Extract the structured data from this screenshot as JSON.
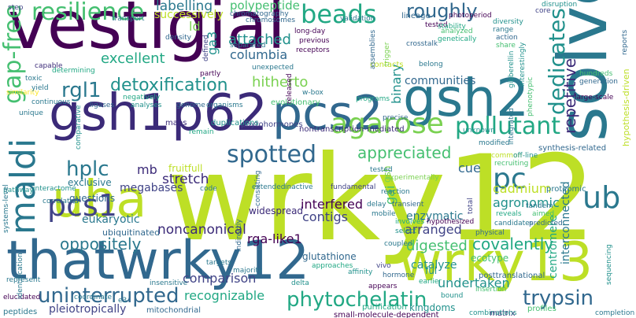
{
  "word_cloud": {
    "background": "#ffffff",
    "palette": {
      "dark_purple": "#440154",
      "indigo": "#3b2a78",
      "blue_violet": "#414487",
      "slate_blue": "#31688e",
      "teal_blue": "#2a788e",
      "teal": "#21918c",
      "green_teal": "#22a884",
      "green": "#44bf70",
      "light_green": "#7ad151",
      "yellow_green": "#bddf26",
      "yellow": "#fde725"
    },
    "words": [
      {
        "text": "vestigial",
        "color": "#440154"
      },
      {
        "text": "wrky12",
        "color": "#bddf26"
      },
      {
        "text": "solve",
        "color": "#2a788e"
      },
      {
        "text": "thatwrky12",
        "color": "#31688e"
      },
      {
        "text": "wrky13",
        "color": "#bddf26"
      },
      {
        "text": "gsh1",
        "color": "#3b2a78"
      },
      {
        "text": "p62",
        "color": "#3b2a78"
      },
      {
        "text": "gsh2",
        "color": "#2a788e"
      },
      {
        "text": "pcs2",
        "color": "#31688e"
      },
      {
        "text": "uba",
        "color": "#bddf26"
      },
      {
        "text": "maldi",
        "color": "#2a788e"
      },
      {
        "text": "gap-free",
        "color": "#44bf70"
      },
      {
        "text": "resilience",
        "color": "#44bf70"
      },
      {
        "text": "beads",
        "color": "#22a884"
      },
      {
        "text": "roughly",
        "color": "#31688e"
      },
      {
        "text": "agarose",
        "color": "#7ad151"
      },
      {
        "text": "pollutant",
        "color": "#22a884"
      },
      {
        "text": "spotted",
        "color": "#31688e"
      },
      {
        "text": "pcs1",
        "color": "#414487"
      },
      {
        "text": "hplc",
        "color": "#2a788e"
      },
      {
        "text": "rgl1",
        "color": "#2a788e"
      },
      {
        "text": "detoxification",
        "color": "#21918c"
      },
      {
        "text": "uninterrupted",
        "color": "#31688e"
      },
      {
        "text": "phytochelatin",
        "color": "#22a884"
      },
      {
        "text": "trypsin",
        "color": "#31688e"
      },
      {
        "text": "ub",
        "color": "#2a788e"
      },
      {
        "text": "pc",
        "color": "#2a788e"
      },
      {
        "text": "dedicates",
        "color": "#21918c"
      },
      {
        "text": "repetitive",
        "color": "#3b2a78"
      },
      {
        "text": "labelling",
        "color": "#2a788e"
      },
      {
        "text": "polypeptide",
        "color": "#44bf70"
      },
      {
        "text": "chromatography",
        "color": "#31688e"
      },
      {
        "text": "successively",
        "color": "#bddf26"
      },
      {
        "text": "attached",
        "color": "#21918c"
      },
      {
        "text": "columbia",
        "color": "#31688e"
      },
      {
        "text": "excellent",
        "color": "#22a884"
      },
      {
        "text": "hitherto",
        "color": "#7ad151"
      },
      {
        "text": "appreciated",
        "color": "#44bf70"
      },
      {
        "text": "stretch",
        "color": "#3b2a78"
      },
      {
        "text": "binary",
        "color": "#21918c"
      },
      {
        "text": "communities",
        "color": "#31688e"
      },
      {
        "text": "agronomic",
        "color": "#21918c"
      },
      {
        "text": "cadmium",
        "color": "#bddf26"
      },
      {
        "text": "interfered",
        "color": "#440154"
      },
      {
        "text": "enzymatic",
        "color": "#2a788e"
      },
      {
        "text": "contigs",
        "color": "#414487"
      },
      {
        "text": "arranged",
        "color": "#414487"
      },
      {
        "text": "covalently",
        "color": "#22a884"
      },
      {
        "text": "oppositely",
        "color": "#2a788e"
      },
      {
        "text": "noncanonical",
        "color": "#3b2a78"
      },
      {
        "text": "rga-like1",
        "color": "#440154"
      },
      {
        "text": "digested",
        "color": "#44bf70"
      },
      {
        "text": "comparison",
        "color": "#414487"
      },
      {
        "text": "recognizable",
        "color": "#22a884"
      },
      {
        "text": "undertaken",
        "color": "#21918c"
      },
      {
        "text": "pleiotropically",
        "color": "#414487"
      },
      {
        "text": "megabases",
        "color": "#414487"
      },
      {
        "text": "eukaryotic",
        "color": "#2a788e"
      },
      {
        "text": "glutathione",
        "color": "#31688e"
      },
      {
        "text": "interconnected",
        "color": "#2a788e"
      },
      {
        "text": "centromere",
        "color": "#22a884"
      },
      {
        "text": "kingdoms",
        "color": "#21918c"
      },
      {
        "text": "catalyze",
        "color": "#21918c"
      },
      {
        "text": "fruitfull",
        "color": "#bddf26"
      },
      {
        "text": "exclusive",
        "color": "#2a788e"
      },
      {
        "text": "questions",
        "color": "#31688e"
      },
      {
        "text": "widespread",
        "color": "#3b2a78"
      },
      {
        "text": "ubiquitinated",
        "color": "#31688e"
      },
      {
        "text": "mb",
        "color": "#3b2a78"
      },
      {
        "text": "cue",
        "color": "#31688e"
      },
      {
        "text": "ld",
        "color": "#7ad151"
      },
      {
        "text": "ga3",
        "color": "#21918c"
      },
      {
        "text": "gai",
        "color": "#44bf70"
      },
      {
        "text": "gsh",
        "color": "#7ad151"
      },
      {
        "text": "small-molecule-dependent",
        "color": "#440154"
      },
      {
        "text": "mitochondrial",
        "color": "#31688e"
      },
      {
        "text": "purification",
        "color": "#22a884"
      },
      {
        "text": "peptides",
        "color": "#2a788e"
      },
      {
        "text": "profiles",
        "color": "#44bf70"
      },
      {
        "text": "matrix",
        "color": "#3b2a78"
      },
      {
        "text": "combinations",
        "color": "#21918c"
      },
      {
        "text": "proteomic",
        "color": "#2a788e"
      },
      {
        "text": "ecotype",
        "color": "#44bf70"
      },
      {
        "text": "posttranslational",
        "color": "#31688e"
      },
      {
        "text": "nontranscription-mediated",
        "color": "#3b2a78"
      },
      {
        "text": "evolutionary",
        "color": "#44bf70"
      },
      {
        "text": "phytohormones",
        "color": "#414487"
      },
      {
        "text": "duplications",
        "color": "#21918c"
      },
      {
        "text": "genome",
        "color": "#31688e"
      },
      {
        "text": "organisms",
        "color": "#2a788e"
      },
      {
        "text": "synthesis-related",
        "color": "#31688e"
      },
      {
        "text": "hypothesis-driven",
        "color": "#bddf26"
      },
      {
        "text": "chromosomes",
        "color": "#31688e"
      },
      {
        "text": "long-day",
        "color": "#440154"
      },
      {
        "text": "previous",
        "color": "#440154"
      },
      {
        "text": "receptors",
        "color": "#440154"
      },
      {
        "text": "crosstalk",
        "color": "#31688e"
      },
      {
        "text": "contacts",
        "color": "#bddf26"
      },
      {
        "text": "belong",
        "color": "#2a788e"
      },
      {
        "text": "diversity",
        "color": "#21918c"
      },
      {
        "text": "range",
        "color": "#2a788e"
      },
      {
        "text": "action",
        "color": "#31688e"
      },
      {
        "text": "share",
        "color": "#44bf70"
      },
      {
        "text": "genetically",
        "color": "#22a884"
      },
      {
        "text": "analyzed",
        "color": "#44bf70"
      },
      {
        "text": "tested",
        "color": "#440154"
      },
      {
        "text": "stability",
        "color": "#22a884"
      },
      {
        "text": "lineage",
        "color": "#31688e"
      },
      {
        "text": "photoperiod",
        "color": "#440154"
      },
      {
        "text": "disruption",
        "color": "#21918c"
      },
      {
        "text": "core",
        "color": "#414487"
      },
      {
        "text": "transport",
        "color": "#2a788e"
      },
      {
        "text": "step",
        "color": "#414487"
      },
      {
        "text": "validation",
        "color": "#2a788e"
      },
      {
        "text": "density",
        "color": "#31688e"
      },
      {
        "text": "defined",
        "color": "#414487"
      },
      {
        "text": "separated",
        "color": "#2a788e"
      },
      {
        "text": "capable",
        "color": "#3b2a78"
      },
      {
        "text": "toxic",
        "color": "#2a788e"
      },
      {
        "text": "similarity",
        "color": "#fde725"
      },
      {
        "text": "yield",
        "color": "#2a788e"
      },
      {
        "text": "unique",
        "color": "#2a788e"
      },
      {
        "text": "continuous",
        "color": "#2a788e"
      },
      {
        "text": "determining",
        "color": "#22a884"
      },
      {
        "text": "ligases",
        "color": "#31688e"
      },
      {
        "text": "negatively",
        "color": "#22a884"
      },
      {
        "text": "analyses",
        "color": "#21918c"
      },
      {
        "text": "partly",
        "color": "#440154"
      },
      {
        "text": "programs",
        "color": "#22a884"
      },
      {
        "text": "precise",
        "color": "#31688e"
      },
      {
        "text": "unknown",
        "color": "#21918c"
      },
      {
        "text": "modified",
        "color": "#2a788e"
      },
      {
        "text": "common",
        "color": "#bddf26"
      },
      {
        "text": "recruiting",
        "color": "#44bf70"
      },
      {
        "text": "off-line",
        "color": "#21918c"
      },
      {
        "text": "large-scale",
        "color": "#440154"
      },
      {
        "text": "hundreds",
        "color": "#44bf70"
      },
      {
        "text": "generation",
        "color": "#31688e"
      },
      {
        "text": "reports",
        "color": "#31688e"
      },
      {
        "text": "maps",
        "color": "#3b2a78"
      },
      {
        "text": "remain",
        "color": "#22a884"
      },
      {
        "text": "code",
        "color": "#2a788e"
      },
      {
        "text": "pathway",
        "color": "#21918c"
      },
      {
        "text": "interactome",
        "color": "#21918c"
      },
      {
        "text": "correlated",
        "color": "#2a788e"
      },
      {
        "text": "fundamental",
        "color": "#414487"
      },
      {
        "text": "tested",
        "color": "#2a788e"
      },
      {
        "text": "experimentally",
        "color": "#7ad151"
      },
      {
        "text": "reaction",
        "color": "#2a788e"
      },
      {
        "text": "extended",
        "color": "#2a788e"
      },
      {
        "text": "inactive",
        "color": "#2a788e"
      },
      {
        "text": "delay",
        "color": "#2a788e"
      },
      {
        "text": "transient",
        "color": "#31688e"
      },
      {
        "text": "mobile",
        "color": "#2a788e"
      },
      {
        "text": "involves",
        "color": "#22a884"
      },
      {
        "text": "hypothesized",
        "color": "#440154"
      },
      {
        "text": "select",
        "color": "#21918c"
      },
      {
        "text": "coupled",
        "color": "#2a788e"
      },
      {
        "text": "reveals",
        "color": "#22a884"
      },
      {
        "text": "candidates",
        "color": "#2a788e"
      },
      {
        "text": "physical",
        "color": "#31688e"
      },
      {
        "text": "aimed",
        "color": "#44bf70"
      },
      {
        "text": "predicted",
        "color": "#31688e"
      },
      {
        "text": "tandem",
        "color": "#2a788e"
      },
      {
        "text": "total",
        "color": "#414487"
      },
      {
        "text": "insertion",
        "color": "#44bf70"
      },
      {
        "text": "vivo",
        "color": "#414487"
      },
      {
        "text": "affinity",
        "color": "#21918c"
      },
      {
        "text": "approaches",
        "color": "#22a884"
      },
      {
        "text": "hormone",
        "color": "#31688e"
      },
      {
        "text": "appears",
        "color": "#440154"
      },
      {
        "text": "earlier",
        "color": "#22a884"
      },
      {
        "text": "bound",
        "color": "#21918c"
      },
      {
        "text": "targets",
        "color": "#2a788e"
      },
      {
        "text": "majority",
        "color": "#2a788e"
      },
      {
        "text": "ful",
        "color": "#21918c"
      },
      {
        "text": "represent",
        "color": "#2a788e"
      },
      {
        "text": "systems-level",
        "color": "#2a788e"
      },
      {
        "text": "elucidated",
        "color": "#440154"
      },
      {
        "text": "coordinate",
        "color": "#2a788e"
      },
      {
        "text": "identification",
        "color": "#2a788e"
      },
      {
        "text": "insensitive",
        "color": "#2a788e"
      },
      {
        "text": "consisting",
        "color": "#31688e"
      },
      {
        "text": "indirectly",
        "color": "#31688e"
      },
      {
        "text": "released",
        "color": "#440154"
      },
      {
        "text": "w-box",
        "color": "#2a788e"
      },
      {
        "text": "unexpected",
        "color": "#2a788e"
      },
      {
        "text": "integrated",
        "color": "#2a788e"
      },
      {
        "text": "phenotypic",
        "color": "#44bf70"
      },
      {
        "text": "gibberellin",
        "color": "#21918c"
      },
      {
        "text": "interestingly",
        "color": "#21918c"
      },
      {
        "text": "assemblies",
        "color": "#31688e"
      },
      {
        "text": "trigger",
        "color": "#7ad151"
      },
      {
        "text": "e3",
        "color": "#2a788e"
      },
      {
        "text": "comparative",
        "color": "#21918c"
      },
      {
        "text": "delta",
        "color": "#21918c"
      },
      {
        "text": "sequencing",
        "color": "#21918c"
      },
      {
        "text": "completion",
        "color": "#2a788e"
      }
    ]
  }
}
